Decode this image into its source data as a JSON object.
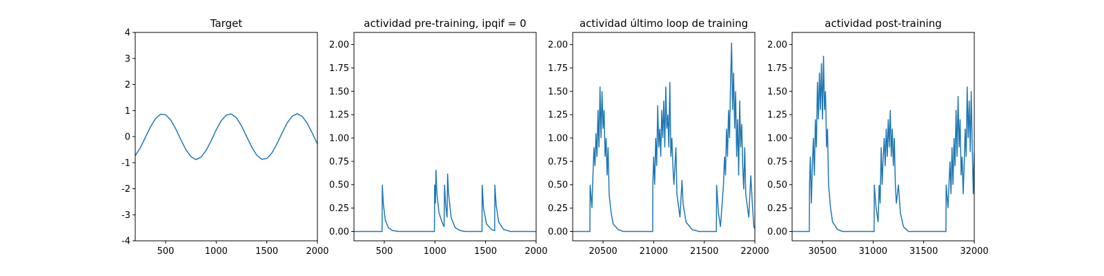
{
  "chart_data": [
    {
      "type": "line",
      "title": "Target",
      "color": "#1f77b4",
      "x": [
        200,
        250,
        300,
        350,
        400,
        450,
        500,
        550,
        600,
        650,
        700,
        750,
        800,
        850,
        900,
        950,
        1000,
        1050,
        1100,
        1150,
        1200,
        1250,
        1300,
        1350,
        1400,
        1450,
        1500,
        1550,
        1600,
        1650,
        1700,
        1750,
        1800,
        1850,
        1900,
        1950,
        2000
      ],
      "values": [
        -0.73,
        -0.43,
        -0.03,
        0.37,
        0.69,
        0.86,
        0.84,
        0.64,
        0.3,
        -0.11,
        -0.5,
        -0.77,
        -0.88,
        -0.79,
        -0.53,
        -0.16,
        0.26,
        0.61,
        0.83,
        0.87,
        0.72,
        0.41,
        0.01,
        -0.39,
        -0.71,
        -0.87,
        -0.84,
        -0.63,
        -0.28,
        0.13,
        0.52,
        0.78,
        0.88,
        0.78,
        0.51,
        0.13,
        -0.28
      ],
      "xlim": [
        200,
        2000
      ],
      "xticks": [
        500,
        1000,
        1500,
        2000
      ],
      "ylim": [
        -4,
        4
      ],
      "yticks": [
        -4,
        -3,
        -2,
        -1,
        0,
        1,
        2,
        3,
        4
      ]
    },
    {
      "type": "line",
      "title": "actividad pre-training, ipqif = 0",
      "color": "#1f77b4",
      "x": [
        200,
        478,
        480,
        490,
        510,
        540,
        580,
        650,
        995,
        997,
        1005,
        1010,
        1020,
        1040,
        1070,
        1090,
        1095,
        1105,
        1120,
        1125,
        1135,
        1160,
        1200,
        1250,
        1300,
        1465,
        1467,
        1480,
        1510,
        1560,
        1590,
        1592,
        1605,
        1630,
        1680,
        1750,
        2000
      ],
      "values": [
        0,
        0,
        0.5,
        0.3,
        0.12,
        0.04,
        0.01,
        0,
        0,
        0.5,
        0.3,
        0.66,
        0.4,
        0.2,
        0.1,
        0.05,
        0.5,
        0.3,
        0.15,
        0.62,
        0.4,
        0.15,
        0.04,
        0.01,
        0,
        0,
        0.5,
        0.25,
        0.08,
        0.02,
        0.01,
        0.5,
        0.28,
        0.1,
        0.02,
        0,
        0
      ],
      "xlim": [
        200,
        2000
      ],
      "xticks": [
        500,
        1000,
        1500,
        2000
      ],
      "ylim": [
        -0.1,
        2.13
      ],
      "yticks": [
        {
          "value": 0,
          "label": "0.00"
        },
        0.25,
        {
          "value": 0.5,
          "label": "0.50"
        },
        0.75,
        {
          "value": 1,
          "label": "1.00"
        },
        1.25,
        {
          "value": 1.5,
          "label": "1.50"
        },
        1.75,
        {
          "value": 2,
          "label": "2.00"
        }
      ]
    },
    {
      "type": "line",
      "title": "actividad último loop de training",
      "color": "#1f77b4",
      "x": [
        20200,
        20370,
        20372,
        20390,
        20400,
        20410,
        20420,
        20430,
        20440,
        20450,
        20460,
        20470,
        20480,
        20490,
        20500,
        20510,
        20520,
        20530,
        20540,
        20550,
        20560,
        20580,
        20600,
        20650,
        20700,
        20990,
        20992,
        21000,
        21010,
        21020,
        21030,
        21040,
        21050,
        21060,
        21070,
        21080,
        21090,
        21100,
        21110,
        21120,
        21130,
        21140,
        21150,
        21160,
        21170,
        21180,
        21190,
        21200,
        21220,
        21230,
        21260,
        21280,
        21290,
        21320,
        21380,
        21450,
        21620,
        21622,
        21640,
        21660,
        21680,
        21690,
        21700,
        21710,
        21720,
        21730,
        21740,
        21750,
        21760,
        21770,
        21780,
        21790,
        21800,
        21810,
        21820,
        21830,
        21840,
        21850,
        21860,
        21870,
        21880,
        21890,
        21900,
        21910,
        21940,
        21960,
        21975,
        21990,
        22000
      ],
      "values": [
        0,
        0,
        0.5,
        0.25,
        0.6,
        0.9,
        0.7,
        1.05,
        0.8,
        1.3,
        0.9,
        1.55,
        1.0,
        1.5,
        1.1,
        1.3,
        0.8,
        1.0,
        0.6,
        0.9,
        0.4,
        0.2,
        0.08,
        0.02,
        0,
        0,
        0.5,
        0.8,
        0.5,
        1.0,
        0.7,
        1.35,
        0.9,
        1.1,
        0.8,
        1.3,
        1.0,
        1.4,
        0.9,
        1.55,
        1.1,
        1.25,
        0.9,
        1.6,
        0.8,
        1.0,
        0.7,
        0.5,
        0.9,
        0.4,
        0.15,
        0.55,
        0.3,
        0.1,
        0.02,
        0,
        0,
        0.5,
        0.2,
        0.05,
        0.35,
        0.5,
        0.8,
        0.6,
        1.1,
        0.8,
        1.3,
        1.0,
        1.6,
        2.02,
        1.3,
        1.7,
        1.1,
        1.5,
        0.8,
        1.2,
        0.6,
        1.4,
        0.9,
        1.15,
        0.7,
        0.45,
        0.9,
        0.4,
        0.15,
        0.6,
        0.3,
        0.05,
        0.03
      ],
      "xlim": [
        20200,
        22000
      ],
      "xticks": [
        20500,
        21000,
        21500,
        22000
      ],
      "ylim": [
        -0.1,
        2.13
      ],
      "yticks": [
        {
          "value": 0,
          "label": "0.00"
        },
        0.25,
        {
          "value": 0.5,
          "label": "0.50"
        },
        0.75,
        {
          "value": 1,
          "label": "1.00"
        },
        1.25,
        {
          "value": 1.5,
          "label": "1.50"
        },
        1.75,
        {
          "value": 2,
          "label": "2.00"
        }
      ]
    },
    {
      "type": "line",
      "title": "actividad post-training",
      "color": "#1f77b4",
      "x": [
        30200,
        30370,
        30372,
        30380,
        30390,
        30400,
        30410,
        30420,
        30430,
        30440,
        30450,
        30460,
        30470,
        30480,
        30490,
        30500,
        30510,
        30520,
        30530,
        30540,
        30550,
        30560,
        30580,
        30600,
        30650,
        30700,
        31010,
        31012,
        31030,
        31050,
        31060,
        31070,
        31080,
        31090,
        31100,
        31110,
        31120,
        31130,
        31140,
        31150,
        31160,
        31170,
        31180,
        31190,
        31200,
        31210,
        31220,
        31230,
        31250,
        31270,
        31300,
        31350,
        31720,
        31722,
        31740,
        31760,
        31770,
        31780,
        31790,
        31800,
        31810,
        31820,
        31830,
        31840,
        31850,
        31860,
        31870,
        31880,
        31890,
        31900,
        31910,
        31920,
        31930,
        31940,
        31950,
        31960,
        31970,
        31980,
        31990,
        32000
      ],
      "values": [
        0,
        0,
        0.5,
        0.8,
        0.3,
        0.7,
        1.0,
        0.6,
        1.2,
        0.9,
        1.6,
        1.2,
        1.7,
        1.3,
        1.8,
        1.2,
        1.88,
        1.3,
        1.5,
        0.9,
        1.1,
        0.5,
        0.25,
        0.1,
        0.02,
        0,
        0,
        0.5,
        0.25,
        0.1,
        0.5,
        0.3,
        0.9,
        0.5,
        0.8,
        1.0,
        0.7,
        1.1,
        0.8,
        1.2,
        0.9,
        1.3,
        0.8,
        1.1,
        0.7,
        1.0,
        0.5,
        0.3,
        0.5,
        0.2,
        0.05,
        0,
        0,
        0.5,
        0.25,
        0.75,
        0.4,
        0.9,
        0.5,
        1.0,
        0.7,
        1.3,
        0.8,
        1.45,
        0.9,
        1.2,
        0.6,
        0.8,
        0.4,
        0.7,
        1.1,
        0.8,
        1.55,
        1.0,
        1.4,
        0.85,
        1.5,
        0.9,
        0.4,
        0.85
      ],
      "xlim": [
        30200,
        32000
      ],
      "xticks": [
        30500,
        31000,
        31500,
        32000
      ],
      "ylim": [
        -0.1,
        2.13
      ],
      "yticks": [
        {
          "value": 0,
          "label": "0.00"
        },
        0.25,
        {
          "value": 0.5,
          "label": "0.50"
        },
        0.75,
        {
          "value": 1,
          "label": "1.00"
        },
        1.25,
        {
          "value": 1.5,
          "label": "1.50"
        },
        1.75,
        {
          "value": 2,
          "label": "2.00"
        }
      ]
    }
  ]
}
